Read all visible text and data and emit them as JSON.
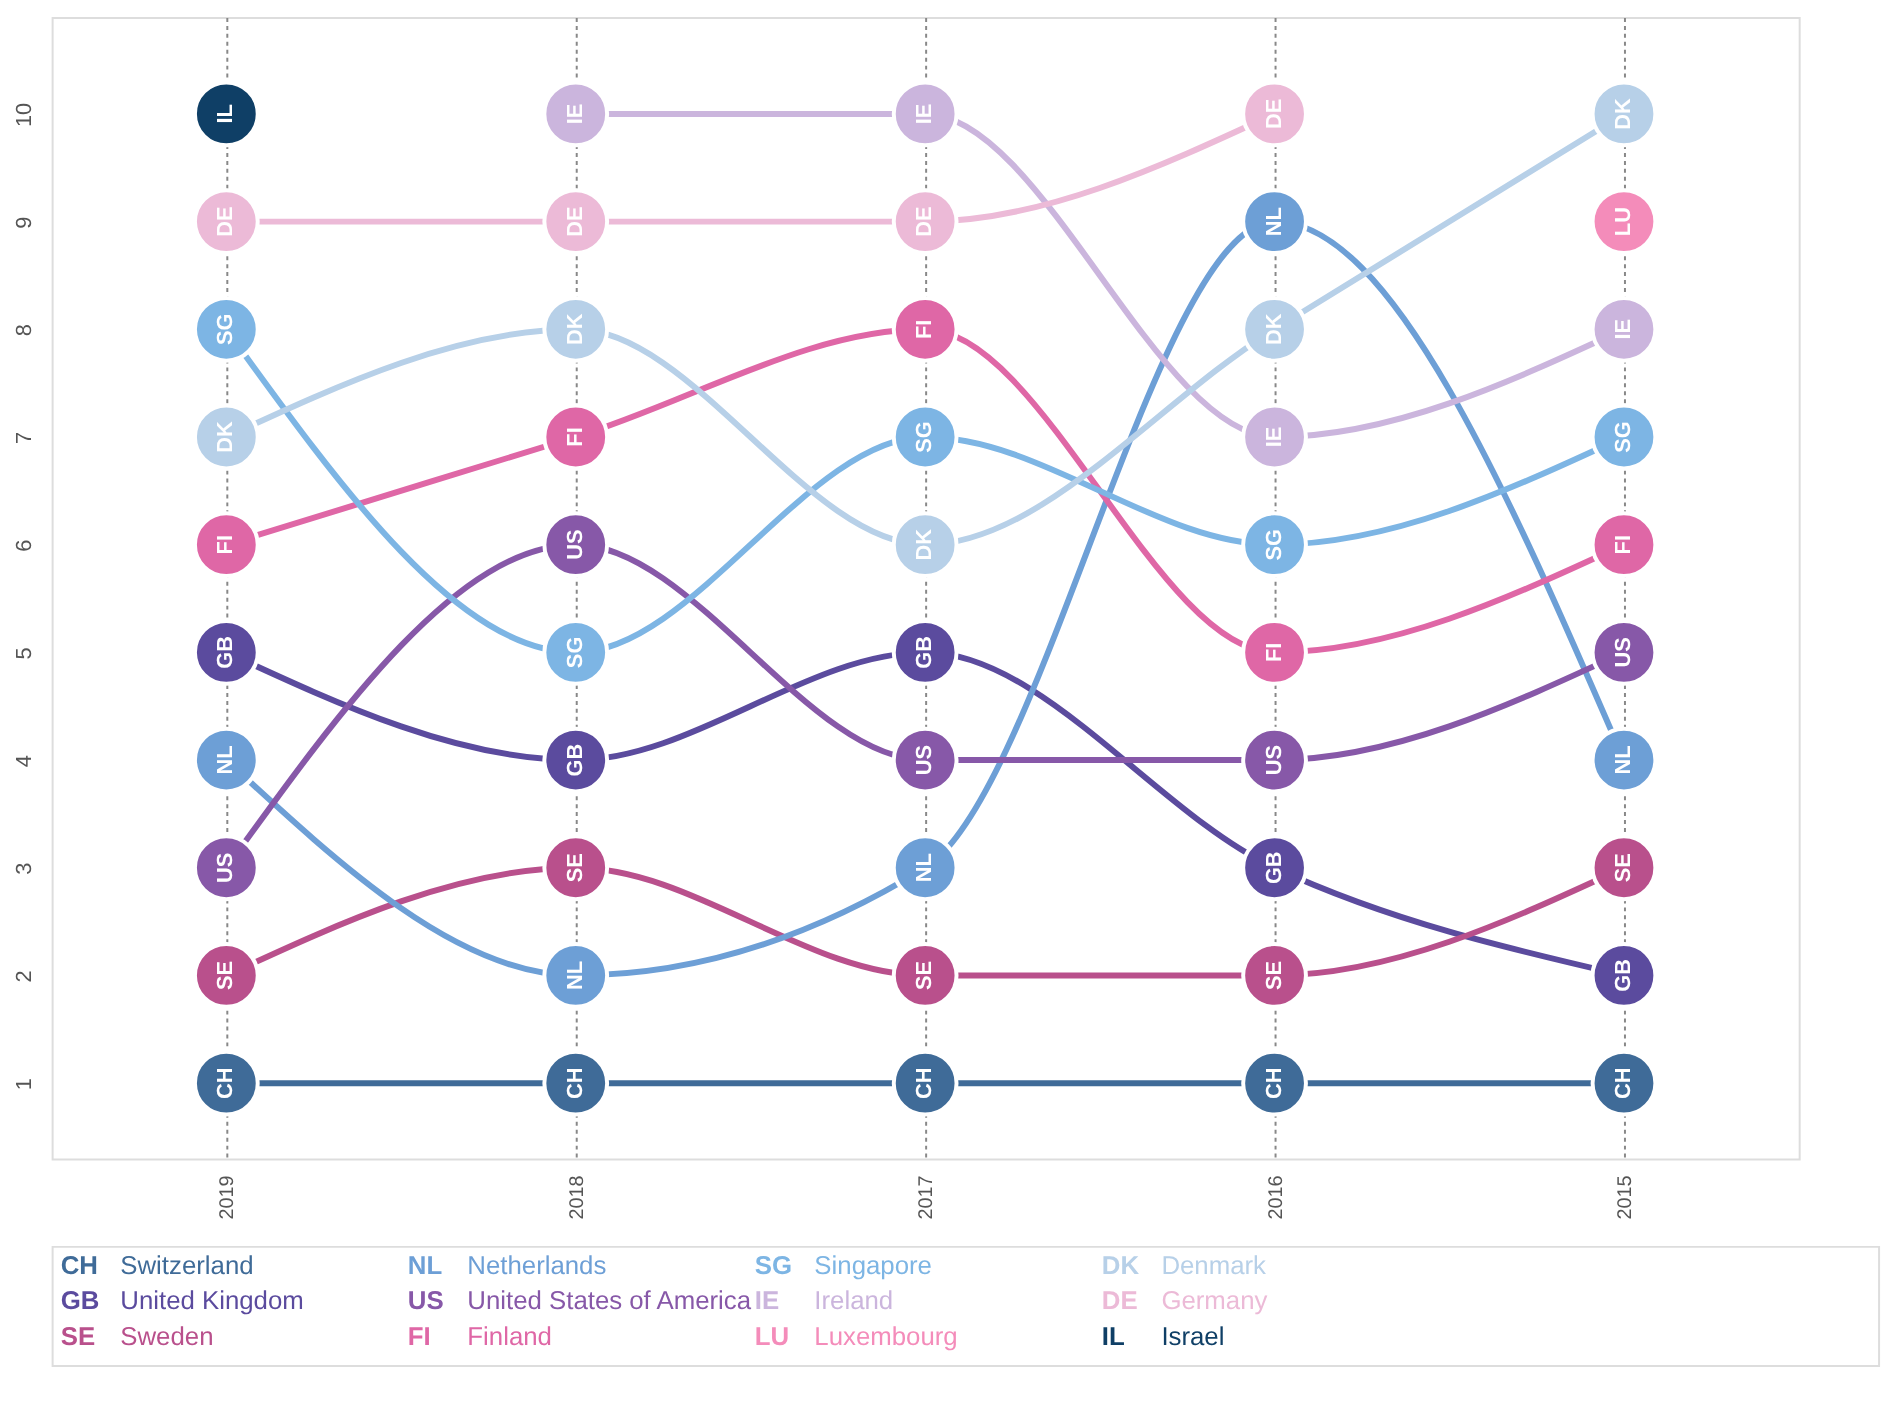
{
  "chart_data": {
    "type": "line",
    "categories": [
      "2019",
      "2018",
      "2017",
      "2016",
      "2015"
    ],
    "ylim": [
      0.3,
      10.9
    ],
    "yticks": [
      1,
      2,
      3,
      4,
      5,
      6,
      7,
      8,
      9,
      10
    ],
    "grid": "x",
    "legend": "bottom",
    "marker": "circle",
    "line_style": "solid",
    "series": [
      {
        "name": "Switzerland",
        "color": "#3f6b98",
        "values": [
          1,
          1,
          1,
          1,
          1
        ],
        "value_labels": [
          "CH",
          "CH",
          "CH",
          "CH",
          "CH"
        ]
      },
      {
        "name": "United Kingdom",
        "color": "#5b4b9e",
        "values": [
          5,
          4,
          5,
          3,
          2
        ],
        "value_labels": [
          "GB",
          "GB",
          "GB",
          "GB",
          "GB"
        ]
      },
      {
        "name": "Sweden",
        "color": "#b9508c",
        "values": [
          2,
          3,
          2,
          2,
          3
        ],
        "value_labels": [
          "SE",
          "SE",
          "SE",
          "SE",
          "SE"
        ]
      },
      {
        "name": "Netherlands",
        "color": "#6d9fd6",
        "values": [
          4,
          2,
          3,
          9,
          4
        ],
        "value_labels": [
          "NL",
          "NL",
          "NL",
          "NL",
          "NL"
        ]
      },
      {
        "name": "United States of America",
        "color": "#8758a8",
        "values": [
          3,
          6,
          4,
          4,
          5
        ],
        "value_labels": [
          "US",
          "US",
          "US",
          "US",
          "US"
        ]
      },
      {
        "name": "Finland",
        "color": "#df67a6",
        "values": [
          6,
          7,
          8,
          5,
          6
        ],
        "value_labels": [
          "FI",
          "FI",
          "FI",
          "FI",
          "FI"
        ]
      },
      {
        "name": "Singapore",
        "color": "#7db5e4",
        "values": [
          8,
          5,
          7,
          6,
          7
        ],
        "value_labels": [
          "SG",
          "SG",
          "SG",
          "SG",
          "SG"
        ]
      },
      {
        "name": "Ireland",
        "color": "#cbb5dd",
        "values": [
          null,
          10,
          10,
          7,
          8
        ],
        "value_labels": [
          null,
          "IE",
          "IE",
          "IE",
          "IE"
        ]
      },
      {
        "name": "Luxembourg",
        "color": "#f48cba",
        "values": [
          null,
          null,
          null,
          null,
          9
        ],
        "value_labels": [
          null,
          null,
          null,
          null,
          "LU"
        ]
      },
      {
        "name": "Denmark",
        "color": "#b7d0e8",
        "values": [
          7,
          8,
          6,
          8,
          10
        ],
        "value_labels": [
          "DK",
          "DK",
          "DK",
          "DK",
          "DK"
        ]
      },
      {
        "name": "Germany",
        "color": "#ecbad7",
        "values": [
          9,
          9,
          9,
          10,
          null
        ],
        "value_labels": [
          "DE",
          "DE",
          "DE",
          "DE",
          null
        ]
      },
      {
        "name": "Israel",
        "color": "#0f3f66",
        "values": [
          10,
          null,
          null,
          null,
          null
        ],
        "value_labels": [
          "IL",
          null,
          null,
          null,
          null
        ]
      }
    ]
  }
}
